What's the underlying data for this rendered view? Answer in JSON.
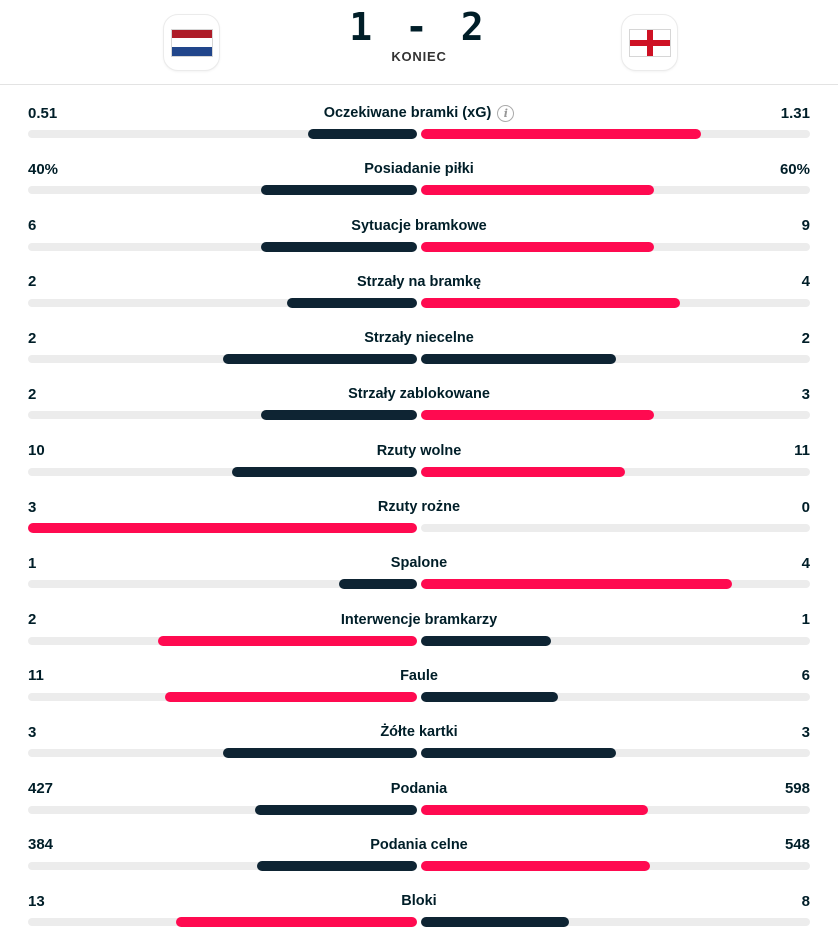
{
  "header": {
    "score": "1 - 2",
    "status": "KONIEC",
    "home_flag_icon": "netherlands-flag-icon",
    "away_flag_icon": "england-flag-icon"
  },
  "colors": {
    "highlight_bar": "#ff0a50",
    "neutral_bar": "#0e2433",
    "track": "#ececec",
    "text_dark": "#001e28",
    "nl_red": "#ae1c28",
    "nl_blue": "#21468b",
    "england_cross_red": "#ce1124"
  },
  "stats": {
    "info_icon_glyph": "i",
    "rows": [
      {
        "label": "Oczekiwane bramki (xG)",
        "home": "0.51",
        "away": "1.31",
        "info": true
      },
      {
        "label": "Posiadanie piłki",
        "home": "40%",
        "away": "60%"
      },
      {
        "label": "Sytuacje bramkowe",
        "home": "6",
        "away": "9"
      },
      {
        "label": "Strzały na bramkę",
        "home": "2",
        "away": "4"
      },
      {
        "label": "Strzały niecelne",
        "home": "2",
        "away": "2"
      },
      {
        "label": "Strzały zablokowane",
        "home": "2",
        "away": "3"
      },
      {
        "label": "Rzuty wolne",
        "home": "10",
        "away": "11"
      },
      {
        "label": "Rzuty rożne",
        "home": "3",
        "away": "0"
      },
      {
        "label": "Spalone",
        "home": "1",
        "away": "4"
      },
      {
        "label": "Interwencje bramkarzy",
        "home": "2",
        "away": "1"
      },
      {
        "label": "Faule",
        "home": "11",
        "away": "6"
      },
      {
        "label": "Żółte kartki",
        "home": "3",
        "away": "3"
      },
      {
        "label": "Podania",
        "home": "427",
        "away": "598"
      },
      {
        "label": "Podania celne",
        "home": "384",
        "away": "548"
      },
      {
        "label": "Bloki",
        "home": "13",
        "away": "8"
      }
    ]
  }
}
